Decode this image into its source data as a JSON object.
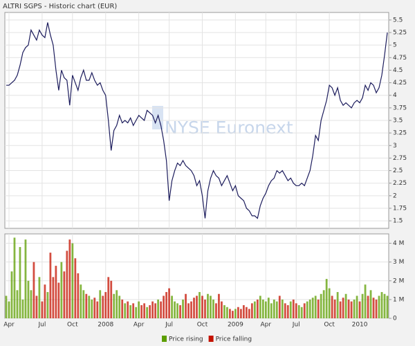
{
  "chart_data": [
    {
      "type": "line",
      "title": "ALTRI SGPS - Historic chart  (EUR)",
      "watermark": "NYSE Euronext",
      "color": "#1b1b5c",
      "grid": true,
      "ylim": [
        1.35,
        5.65
      ],
      "yticks": [
        1.5,
        1.75,
        2,
        2.25,
        2.5,
        2.75,
        3,
        3.25,
        3.5,
        3.75,
        4,
        4.25,
        4.5,
        4.75,
        5,
        5.25,
        5.5
      ],
      "values": [
        4.2,
        4.2,
        4.25,
        4.3,
        4.4,
        4.6,
        4.85,
        4.95,
        5.0,
        5.3,
        5.2,
        5.1,
        5.3,
        5.2,
        5.15,
        5.45,
        5.2,
        5.0,
        4.5,
        4.1,
        4.5,
        4.35,
        4.3,
        3.8,
        4.4,
        4.25,
        4.1,
        4.35,
        4.5,
        4.3,
        4.3,
        4.45,
        4.3,
        4.2,
        4.25,
        4.1,
        4.0,
        3.5,
        2.9,
        3.3,
        3.4,
        3.6,
        3.45,
        3.5,
        3.45,
        3.55,
        3.4,
        3.5,
        3.6,
        3.55,
        3.5,
        3.7,
        3.65,
        3.6,
        3.45,
        3.6,
        3.4,
        3.1,
        2.7,
        1.9,
        2.3,
        2.5,
        2.65,
        2.6,
        2.7,
        2.6,
        2.55,
        2.5,
        2.4,
        2.2,
        2.3,
        2.0,
        1.55,
        2.1,
        2.35,
        2.5,
        2.4,
        2.35,
        2.2,
        2.3,
        2.4,
        2.25,
        2.1,
        2.2,
        2.0,
        1.95,
        1.9,
        1.75,
        1.7,
        1.6,
        1.6,
        1.55,
        1.8,
        1.95,
        2.05,
        2.2,
        2.3,
        2.35,
        2.5,
        2.45,
        2.5,
        2.4,
        2.3,
        2.35,
        2.25,
        2.2,
        2.2,
        2.25,
        2.2,
        2.35,
        2.5,
        2.8,
        3.2,
        3.1,
        3.5,
        3.7,
        3.9,
        4.2,
        4.15,
        4.0,
        4.15,
        3.9,
        3.8,
        3.85,
        3.8,
        3.75,
        3.85,
        3.9,
        3.85,
        3.95,
        4.2,
        4.1,
        4.25,
        4.2,
        4.05,
        4.15,
        4.4,
        4.8,
        5.25
      ]
    },
    {
      "type": "bar",
      "grid": true,
      "ylim": [
        0,
        4.5
      ],
      "yticks": [
        0,
        {
          "value": 1,
          "label": "1 M"
        },
        {
          "value": 2,
          "label": "2 M"
        },
        {
          "value": 3,
          "label": "3 M"
        },
        {
          "value": 4,
          "label": "4 M"
        }
      ],
      "legend": [
        {
          "name": "Price rising",
          "color": "#5c9e00"
        },
        {
          "name": "Price falling",
          "color": "#c41200"
        }
      ],
      "categories": [
        null,
        "Apr",
        null,
        null,
        null,
        null,
        null,
        null,
        null,
        null,
        null,
        null,
        null,
        "Jul",
        null,
        null,
        null,
        null,
        null,
        null,
        null,
        null,
        null,
        null,
        "Oct",
        null,
        null,
        null,
        null,
        null,
        null,
        null,
        null,
        null,
        null,
        null,
        "2008",
        null,
        null,
        null,
        null,
        null,
        null,
        null,
        null,
        null,
        null,
        null,
        "Apr",
        null,
        null,
        null,
        null,
        null,
        null,
        null,
        null,
        null,
        null,
        "Jul",
        null,
        null,
        null,
        null,
        null,
        null,
        null,
        null,
        null,
        null,
        null,
        "Oct",
        null,
        null,
        null,
        null,
        null,
        null,
        null,
        null,
        null,
        null,
        null,
        "2009",
        null,
        null,
        null,
        null,
        null,
        null,
        null,
        null,
        null,
        null,
        "Apr",
        null,
        null,
        null,
        null,
        null,
        null,
        null,
        null,
        null,
        null,
        "Jul",
        null,
        null,
        null,
        null,
        null,
        null,
        null,
        null,
        null,
        null,
        null,
        "Oct",
        null,
        null,
        null,
        null,
        null,
        null,
        null,
        null,
        null,
        null,
        "2010",
        null,
        null,
        null,
        null,
        null,
        null,
        null,
        null,
        null,
        null
      ],
      "values": [
        1.2,
        0.9,
        2.5,
        4.3,
        1.5,
        3.8,
        1.0,
        4.2,
        2.0,
        1.5,
        3.0,
        1.2,
        2.2,
        0.9,
        1.8,
        1.4,
        3.5,
        2.2,
        2.8,
        1.9,
        3.0,
        2.5,
        3.6,
        4.2,
        4.0,
        3.2,
        2.4,
        1.8,
        1.5,
        1.3,
        1.2,
        1.0,
        1.1,
        0.9,
        1.5,
        1.2,
        1.4,
        2.2,
        2.0,
        1.3,
        1.5,
        1.2,
        1.0,
        0.8,
        0.9,
        0.7,
        0.8,
        0.6,
        0.9,
        0.7,
        0.8,
        0.6,
        0.7,
        0.9,
        0.8,
        1.0,
        0.9,
        1.2,
        1.4,
        1.6,
        1.2,
        0.9,
        0.8,
        0.7,
        1.0,
        1.3,
        0.8,
        0.9,
        1.1,
        1.2,
        1.4,
        1.2,
        1.0,
        1.3,
        1.2,
        1.0,
        0.8,
        1.3,
        0.9,
        0.7,
        0.6,
        0.5,
        0.4,
        0.5,
        0.6,
        0.5,
        0.7,
        0.6,
        0.5,
        0.8,
        0.9,
        1.0,
        1.2,
        1.0,
        0.9,
        1.1,
        0.8,
        1.0,
        0.9,
        1.2,
        1.0,
        0.8,
        0.7,
        0.9,
        1.0,
        0.8,
        0.7,
        0.6,
        0.8,
        0.9,
        1.0,
        1.1,
        1.2,
        1.0,
        1.3,
        1.5,
        2.1,
        1.6,
        1.2,
        1.0,
        1.4,
        0.9,
        1.1,
        1.3,
        1.0,
        0.9,
        1.0,
        1.2,
        0.9,
        1.3,
        1.8,
        1.2,
        1.5,
        1.1,
        1.0,
        1.2,
        1.4,
        1.3,
        1.2
      ]
    }
  ]
}
